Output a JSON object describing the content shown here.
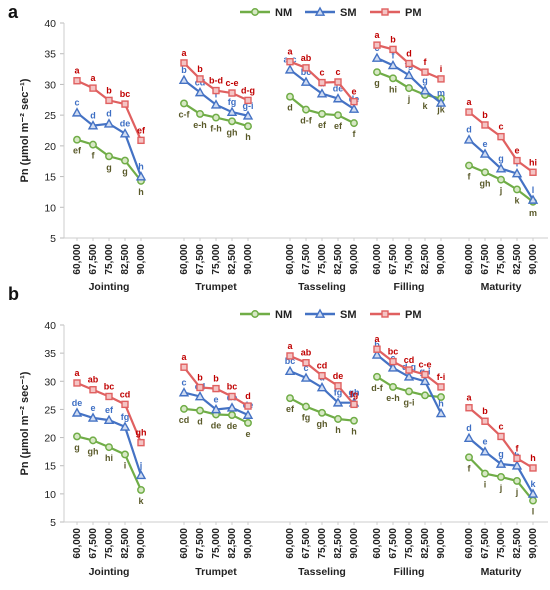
{
  "chart_data": [
    {
      "panel_label": "a",
      "type": "line",
      "ylabel": "Pn (μmol m⁻² sec⁻¹)",
      "ylim": [
        5,
        40
      ],
      "yticks": [
        5,
        10,
        15,
        20,
        25,
        30,
        35,
        40
      ],
      "grid": false,
      "legend_position": "top",
      "x": [
        "60,000",
        "67,500",
        "75,000",
        "82,500",
        "90,000"
      ],
      "groups": [
        "Jointing",
        "Trumpet",
        "Tasseling",
        "Filling",
        "Maturity"
      ],
      "series": [
        {
          "name": "NM",
          "color": "#70AD47",
          "marker": "circle",
          "values": [
            [
              21.0,
              20.2,
              18.3,
              17.6,
              14.3
            ],
            [
              26.9,
              25.2,
              24.6,
              24.0,
              23.2
            ],
            [
              28.0,
              25.9,
              25.2,
              25.0,
              23.7
            ],
            [
              32.0,
              31.0,
              29.4,
              28.3,
              27.7
            ],
            [
              16.8,
              15.7,
              14.5,
              12.9,
              10.9
            ]
          ],
          "letters": [
            [
              "ef",
              "f",
              "g",
              "g",
              "h"
            ],
            [
              "c-f",
              "e-h",
              "f-h",
              "gh",
              "h"
            ],
            [
              "d",
              "d-f",
              "ef",
              "ef",
              "f"
            ],
            [
              "g",
              "hi",
              "j",
              "k",
              "jk"
            ],
            [
              "f",
              "gh",
              "j",
              "k",
              "m"
            ]
          ]
        },
        {
          "name": "SM",
          "color": "#4472C4",
          "marker": "triangle",
          "values": [
            [
              25.4,
              23.3,
              23.6,
              22.0,
              15.0
            ],
            [
              30.7,
              28.7,
              26.7,
              25.5,
              24.9
            ],
            [
              32.4,
              30.4,
              28.5,
              27.7,
              26.0
            ],
            [
              34.3,
              33.1,
              31.5,
              29.0,
              27.0
            ],
            [
              21.0,
              18.7,
              16.3,
              15.5,
              11.2
            ]
          ],
          "letters": [
            [
              "c",
              "d",
              "d",
              "de",
              "h"
            ],
            [
              "b",
              "cd",
              "f",
              "fg",
              "g-i"
            ],
            [
              "a-c",
              "bc",
              "d",
              "de",
              "de"
            ],
            [
              "c",
              "f",
              "fg",
              "g",
              "m"
            ],
            [
              "d",
              "e",
              "g",
              "i",
              "l"
            ]
          ]
        },
        {
          "name": "PM",
          "color": "#E06060",
          "marker": "square",
          "values": [
            [
              30.6,
              29.4,
              27.4,
              26.8,
              20.9
            ],
            [
              33.5,
              30.9,
              29.0,
              28.6,
              27.4
            ],
            [
              33.7,
              32.7,
              30.3,
              30.4,
              27.2
            ],
            [
              36.4,
              35.7,
              33.4,
              32.0,
              30.9
            ],
            [
              25.5,
              23.4,
              21.5,
              17.6,
              15.7
            ]
          ],
          "letters": [
            [
              "a",
              "a",
              "b",
              "bc",
              "ef"
            ],
            [
              "a",
              "b",
              "b-d",
              "c-e",
              "d-g"
            ],
            [
              "a",
              "ab",
              "c",
              "c",
              "e"
            ],
            [
              "a",
              "b",
              "d",
              "f",
              "i"
            ],
            [
              "a",
              "b",
              "c",
              "e",
              "hi"
            ]
          ]
        }
      ]
    },
    {
      "panel_label": "b",
      "type": "line",
      "ylabel": "Pn (μmol m⁻² sec⁻¹)",
      "ylim": [
        5,
        40
      ],
      "yticks": [
        5,
        10,
        15,
        20,
        25,
        30,
        35,
        40
      ],
      "grid": false,
      "legend_position": "top",
      "x": [
        "60,000",
        "67,500",
        "75,000",
        "82,500",
        "90,000"
      ],
      "groups": [
        "Jointing",
        "Trumpet",
        "Tasseling",
        "Filling",
        "Maturity"
      ],
      "series": [
        {
          "name": "NM",
          "color": "#70AD47",
          "marker": "circle",
          "values": [
            [
              20.2,
              19.5,
              18.3,
              17.0,
              10.7
            ],
            [
              25.1,
              24.8,
              24.1,
              24.0,
              22.6
            ],
            [
              27.0,
              25.5,
              24.4,
              23.3,
              23.0
            ],
            [
              30.8,
              29.0,
              28.2,
              27.5,
              27.2
            ],
            [
              16.5,
              13.6,
              13.0,
              12.3,
              8.8
            ]
          ],
          "letters": [
            [
              "g",
              "gh",
              "hi",
              "i",
              "k"
            ],
            [
              "cd",
              "d",
              "de",
              "de",
              "e"
            ],
            [
              "ef",
              "fg",
              "gh",
              "h",
              "h"
            ],
            [
              "d-f",
              "e-h",
              "g-i",
              "",
              ""
            ],
            [
              "f",
              "i",
              "j",
              "j",
              "l"
            ]
          ]
        },
        {
          "name": "SM",
          "color": "#4472C4",
          "marker": "triangle",
          "values": [
            [
              24.4,
              23.5,
              23.1,
              21.9,
              13.3
            ],
            [
              28.0,
              27.3,
              25.0,
              25.3,
              24.0
            ],
            [
              31.8,
              30.6,
              28.9,
              26.2,
              26.2
            ],
            [
              34.7,
              32.4,
              30.8,
              30.0,
              24.3
            ],
            [
              19.9,
              17.5,
              15.3,
              15.0,
              10.0
            ]
          ],
          "letters": [
            [
              "de",
              "e",
              "ef",
              "fg",
              "j"
            ],
            [
              "c",
              "cd",
              "e",
              "de",
              "de"
            ],
            [
              "bc",
              "c",
              "d",
              "fg",
              "gh"
            ],
            [
              "b",
              "c",
              "d-g",
              "g-i",
              "h"
            ],
            [
              "d",
              "e",
              "g",
              "h",
              "k"
            ]
          ]
        },
        {
          "name": "PM",
          "color": "#E06060",
          "marker": "square",
          "values": [
            [
              29.7,
              28.5,
              27.3,
              25.9,
              19.1
            ],
            [
              32.5,
              28.9,
              28.7,
              27.3,
              25.6
            ],
            [
              34.5,
              33.3,
              31.0,
              29.2,
              25.9
            ],
            [
              35.7,
              33.5,
              32.0,
              31.2,
              29.0
            ],
            [
              25.3,
              22.9,
              20.2,
              16.3,
              14.6
            ]
          ],
          "letters": [
            [
              "a",
              "ab",
              "bc",
              "cd",
              "gh"
            ],
            [
              "a",
              "b",
              "b",
              "bc",
              "d"
            ],
            [
              "a",
              "ab",
              "cd",
              "de",
              "fg"
            ],
            [
              "a",
              "bc",
              "cd",
              "c-e",
              "f-i"
            ],
            [
              "a",
              "b",
              "c",
              "f",
              "h"
            ]
          ]
        }
      ]
    }
  ]
}
